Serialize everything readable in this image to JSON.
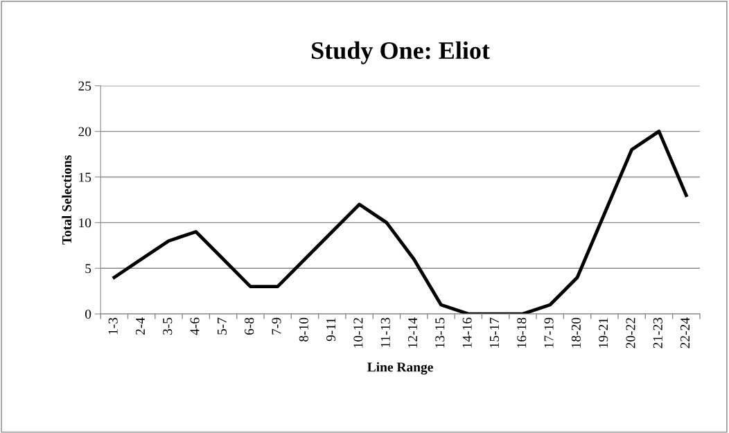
{
  "chart_data": {
    "type": "line",
    "title": "Study One: Eliot",
    "xlabel": "Line Range",
    "ylabel": "Total Selections",
    "categories": [
      "1-3",
      "2-4",
      "3-5",
      "4-6",
      "5-7",
      "6-8",
      "7-9",
      "8-10",
      "9-11",
      "10-12",
      "11-13",
      "12-14",
      "13-15",
      "14-16",
      "15-17",
      "16-18",
      "17-19",
      "18-20",
      "19-21",
      "20-22",
      "21-23",
      "22-24"
    ],
    "series": [
      {
        "color": "#000000",
        "values": [
          4,
          6,
          8,
          9,
          6,
          3,
          3,
          6,
          9,
          12,
          10,
          6,
          1,
          0,
          0,
          0,
          1,
          4,
          11,
          18,
          20,
          13
        ]
      }
    ],
    "ylim": [
      0,
      25
    ],
    "yticks": [
      0,
      5,
      10,
      15,
      20,
      25
    ],
    "grid": "y",
    "legend": false,
    "marker": "none",
    "line_style": "solid"
  }
}
